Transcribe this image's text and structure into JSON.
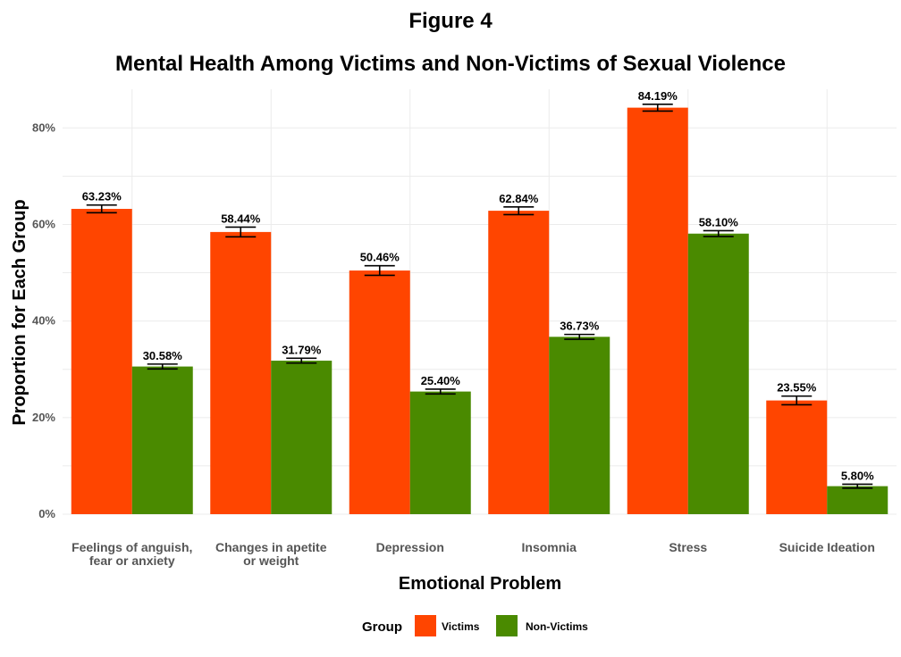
{
  "figure_label": "Figure 4",
  "chart_data": {
    "type": "bar",
    "title": "Mental Health Among Victims and Non-Victims of Sexual Violence",
    "xlabel": "Emotional Problem",
    "ylabel": "Proportion for Each Group",
    "ylim": [
      0,
      0.88
    ],
    "yticks": [
      0,
      0.2,
      0.4,
      0.6,
      0.8
    ],
    "ytick_labels": [
      "0%",
      "20%",
      "40%",
      "60%",
      "80%"
    ],
    "grid": true,
    "legend_position": "bottom",
    "legend_title": "Group",
    "categories": [
      [
        "Feelings of anguish,",
        "fear or anxiety"
      ],
      [
        "Changes in apetite",
        "or weight"
      ],
      [
        "Depression"
      ],
      [
        "Insomnia"
      ],
      [
        "Stress"
      ],
      [
        "Suicide Ideation"
      ]
    ],
    "series": [
      {
        "name": "Victims",
        "color": "#FF4500",
        "values": [
          0.6323,
          0.5844,
          0.5046,
          0.6284,
          0.8419,
          0.2355
        ],
        "labels": [
          "63.23%",
          "58.44%",
          "50.46%",
          "62.84%",
          "84.19%",
          "23.55%"
        ],
        "error": [
          0.008,
          0.01,
          0.01,
          0.008,
          0.007,
          0.009
        ]
      },
      {
        "name": "Non-Victims",
        "color": "#4A8A00",
        "values": [
          0.3058,
          0.3179,
          0.254,
          0.3673,
          0.581,
          0.058
        ],
        "labels": [
          "30.58%",
          "31.79%",
          "25.40%",
          "36.73%",
          "58.10%",
          "5.80%"
        ],
        "error": [
          0.005,
          0.005,
          0.005,
          0.005,
          0.006,
          0.004
        ]
      }
    ]
  }
}
